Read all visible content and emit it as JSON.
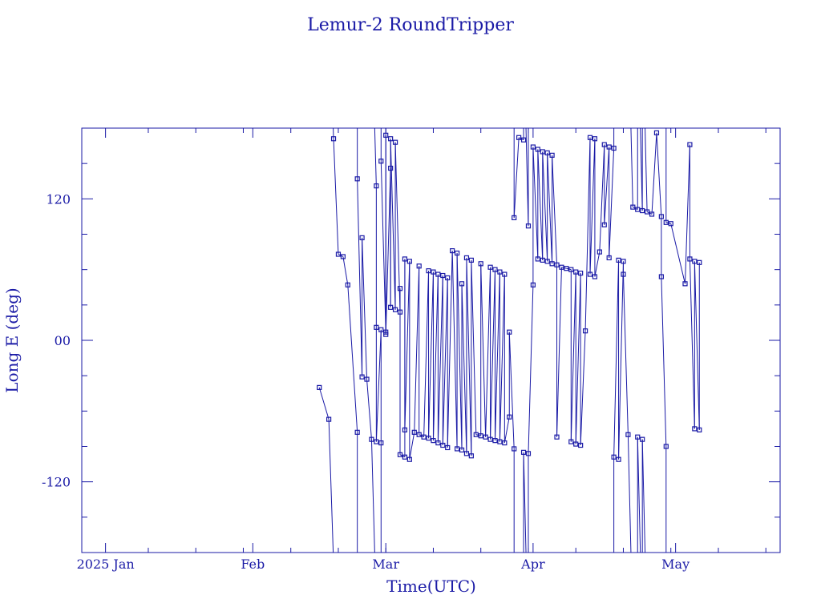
{
  "chart_data": {
    "type": "line",
    "title": "Lemur-2 RoundTripper",
    "xlabel": "Time(UTC)",
    "ylabel": "Long E (deg)",
    "xlim": [
      "2024-12-27",
      "2025-05-23"
    ],
    "ylim": [
      -180,
      180
    ],
    "x_ticks": [
      {
        "date": "2025-01-01",
        "label": "2025 Jan"
      },
      {
        "date": "2025-02-01",
        "label": "Feb"
      },
      {
        "date": "2025-03-01",
        "label": "Mar"
      },
      {
        "date": "2025-04-01",
        "label": "Apr"
      },
      {
        "date": "2025-05-01",
        "label": "May"
      }
    ],
    "y_ticks": [
      {
        "value": 120,
        "label": "120"
      },
      {
        "value": 0,
        "label": "00"
      },
      {
        "value": -120,
        "label": "-120"
      }
    ],
    "grid": false,
    "color": "#1a1aa6",
    "series": [
      {
        "points": [
          [
            "2025-02-15",
            -40
          ],
          [
            "2025-02-17",
            -67
          ],
          [
            "2025-02-18",
            171
          ],
          [
            "2025-02-19",
            73
          ],
          [
            "2025-02-20",
            71
          ],
          [
            "2025-02-21",
            47
          ],
          [
            "2025-02-23",
            -78
          ],
          [
            "2025-02-23",
            137
          ],
          [
            "2025-02-24",
            -31
          ],
          [
            "2025-02-24",
            87
          ],
          [
            "2025-02-25",
            -33
          ],
          [
            "2025-02-26",
            -84
          ],
          [
            "2025-02-27",
            131
          ],
          [
            "2025-02-27",
            11
          ],
          [
            "2025-02-27",
            -86
          ],
          [
            "2025-02-28",
            9
          ],
          [
            "2025-02-28",
            -87
          ],
          [
            "2025-02-28",
            152
          ],
          [
            "2025-03-01",
            7
          ],
          [
            "2025-03-01",
            174
          ],
          [
            "2025-03-01",
            5
          ],
          [
            "2025-03-02",
            146
          ],
          [
            "2025-03-02",
            28
          ],
          [
            "2025-03-02",
            171
          ],
          [
            "2025-03-03",
            26
          ],
          [
            "2025-03-03",
            168
          ],
          [
            "2025-03-04",
            24
          ],
          [
            "2025-03-04",
            44
          ],
          [
            "2025-03-04",
            -97
          ],
          [
            "2025-03-05",
            -99
          ],
          [
            "2025-03-05",
            69
          ],
          [
            "2025-03-05",
            -76
          ],
          [
            "2025-03-06",
            67
          ],
          [
            "2025-03-06",
            -101
          ],
          [
            "2025-03-07",
            -78
          ],
          [
            "2025-03-08",
            63
          ],
          [
            "2025-03-08",
            -80
          ],
          [
            "2025-03-09",
            -82
          ],
          [
            "2025-03-10",
            59
          ],
          [
            "2025-03-10",
            -83
          ],
          [
            "2025-03-11",
            58
          ],
          [
            "2025-03-11",
            -85
          ],
          [
            "2025-03-12",
            56
          ],
          [
            "2025-03-12",
            -87
          ],
          [
            "2025-03-13",
            55
          ],
          [
            "2025-03-13",
            -89
          ],
          [
            "2025-03-14",
            53
          ],
          [
            "2025-03-14",
            -91
          ],
          [
            "2025-03-15",
            76
          ],
          [
            "2025-03-16",
            -92
          ],
          [
            "2025-03-16",
            74
          ],
          [
            "2025-03-17",
            -93
          ],
          [
            "2025-03-17",
            48
          ],
          [
            "2025-03-18",
            -96
          ],
          [
            "2025-03-18",
            70
          ],
          [
            "2025-03-19",
            -98
          ],
          [
            "2025-03-19",
            68
          ],
          [
            "2025-03-20",
            -80
          ],
          [
            "2025-03-21",
            -81
          ],
          [
            "2025-03-21",
            65
          ],
          [
            "2025-03-22",
            -82
          ],
          [
            "2025-03-23",
            62
          ],
          [
            "2025-03-23",
            -84
          ],
          [
            "2025-03-24",
            60
          ],
          [
            "2025-03-24",
            -85
          ],
          [
            "2025-03-25",
            58
          ],
          [
            "2025-03-25",
            -86
          ],
          [
            "2025-03-26",
            56
          ],
          [
            "2025-03-26",
            -87
          ],
          [
            "2025-03-27",
            -65
          ],
          [
            "2025-03-27",
            7
          ],
          [
            "2025-03-28",
            -92
          ],
          [
            "2025-03-28",
            104
          ],
          [
            "2025-03-29",
            172
          ],
          [
            "2025-03-30",
            170
          ],
          [
            "2025-03-30",
            -95
          ],
          [
            "2025-03-31",
            97
          ],
          [
            "2025-03-31",
            -96
          ],
          [
            "2025-04-01",
            47
          ],
          [
            "2025-04-01",
            164
          ],
          [
            "2025-04-02",
            69
          ],
          [
            "2025-04-02",
            162
          ],
          [
            "2025-04-03",
            68
          ],
          [
            "2025-04-03",
            160
          ],
          [
            "2025-04-04",
            67
          ],
          [
            "2025-04-04",
            159
          ],
          [
            "2025-04-05",
            65
          ],
          [
            "2025-04-05",
            157
          ],
          [
            "2025-04-06",
            64
          ],
          [
            "2025-04-06",
            -82
          ],
          [
            "2025-04-07",
            62
          ],
          [
            "2025-04-08",
            61
          ],
          [
            "2025-04-09",
            60
          ],
          [
            "2025-04-09",
            -86
          ],
          [
            "2025-04-10",
            58
          ],
          [
            "2025-04-10",
            -88
          ],
          [
            "2025-04-11",
            57
          ],
          [
            "2025-04-11",
            -89
          ],
          [
            "2025-04-12",
            8
          ],
          [
            "2025-04-13",
            172
          ],
          [
            "2025-04-13",
            56
          ],
          [
            "2025-04-14",
            171
          ],
          [
            "2025-04-14",
            54
          ],
          [
            "2025-04-15",
            75
          ],
          [
            "2025-04-16",
            166
          ],
          [
            "2025-04-16",
            98
          ],
          [
            "2025-04-17",
            164
          ],
          [
            "2025-04-17",
            70
          ],
          [
            "2025-04-18",
            163
          ],
          [
            "2025-04-18",
            -99
          ],
          [
            "2025-04-19",
            68
          ],
          [
            "2025-04-19",
            -101
          ],
          [
            "2025-04-20",
            67
          ],
          [
            "2025-04-20",
            56
          ],
          [
            "2025-04-21",
            -80
          ],
          [
            "2025-04-22",
            113
          ],
          [
            "2025-04-23",
            111
          ],
          [
            "2025-04-23",
            -82
          ],
          [
            "2025-04-24",
            110
          ],
          [
            "2025-04-24",
            -84
          ],
          [
            "2025-04-25",
            109
          ],
          [
            "2025-04-26",
            107
          ],
          [
            "2025-04-27",
            176
          ],
          [
            "2025-04-28",
            105
          ],
          [
            "2025-04-28",
            54
          ],
          [
            "2025-04-29",
            -90
          ],
          [
            "2025-04-29",
            100
          ],
          [
            "2025-04-30",
            99
          ],
          [
            "2025-05-03",
            48
          ],
          [
            "2025-05-04",
            166
          ],
          [
            "2025-05-04",
            69
          ],
          [
            "2025-05-05",
            -75
          ],
          [
            "2025-05-05",
            67
          ],
          [
            "2025-05-06",
            -76
          ],
          [
            "2025-05-06",
            66
          ]
        ]
      }
    ]
  }
}
